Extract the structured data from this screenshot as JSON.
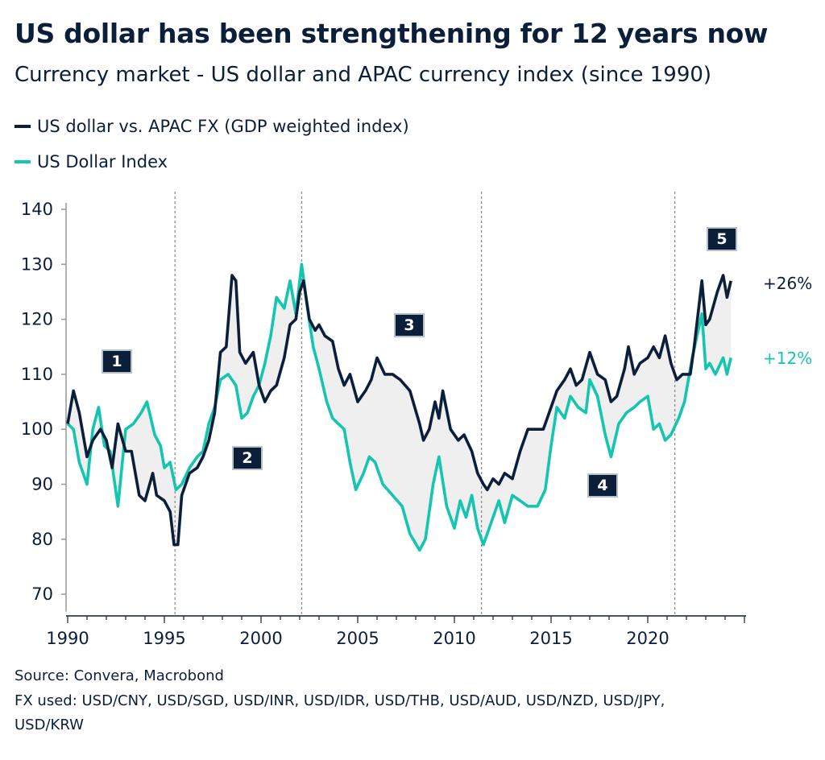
{
  "title": "US dollar has been strengthening for 12 years now",
  "subtitle": "Currency market - US dollar and APAC currency index (since 1990)",
  "colors": {
    "usd_apac": "#0b1f3a",
    "dxy": "#14c5b0",
    "fill": "#efefef"
  },
  "source": "Source: Convera, Macrobond",
  "fx_used": "FX used: USD/CNY, USD/SGD, USD/INR, USD/IDR, USD/THB, USD/AUD, USD/NZD, USD/JPY,",
  "fx_used_2": "USD/KRW",
  "chart_data": {
    "type": "line",
    "title": "US dollar has been strengthening for 12 years now",
    "xlim": [
      1990,
      2025
    ],
    "ylim": [
      68,
      143
    ],
    "x_ticks": [
      1990,
      1995,
      2000,
      2005,
      2010,
      2015,
      2020
    ],
    "y_ticks": [
      70,
      80,
      90,
      100,
      110,
      120,
      130,
      140
    ],
    "grid": false,
    "legend_position": "top-left",
    "shaded_between_series": true,
    "regime_dividers": [
      1995.55,
      2002.1,
      2011.4,
      2021.4
    ],
    "annotations": [
      "1",
      "2",
      "3",
      "4",
      "5"
    ],
    "end_labels": {
      "usd_apac": "+26%",
      "dxy": "+12%"
    },
    "series": [
      {
        "name": "US dollar vs. APAC FX (GDP weighted index)",
        "color": "#0b1f3a",
        "x": [
          1990.0,
          1990.3,
          1990.6,
          1991.0,
          1991.3,
          1991.7,
          1992.0,
          1992.3,
          1992.6,
          1993.0,
          1993.3,
          1993.7,
          1994.0,
          1994.4,
          1994.6,
          1995.0,
          1995.3,
          1995.5,
          1995.7,
          1995.9,
          1996.3,
          1996.7,
          1997.0,
          1997.3,
          1997.6,
          1997.9,
          1998.2,
          1998.5,
          1998.7,
          1998.9,
          1999.2,
          1999.6,
          1999.9,
          2000.2,
          2000.5,
          2000.8,
          2001.2,
          2001.5,
          2001.8,
          2002.0,
          2002.2,
          2002.5,
          2002.8,
          2003.0,
          2003.3,
          2003.7,
          2004.0,
          2004.3,
          2004.6,
          2005.0,
          2005.4,
          2005.7,
          2006.0,
          2006.4,
          2006.8,
          2007.2,
          2007.7,
          2008.2,
          2008.4,
          2008.7,
          2009.0,
          2009.2,
          2009.4,
          2009.8,
          2010.2,
          2010.5,
          2010.9,
          2011.2,
          2011.5,
          2011.7,
          2012.0,
          2012.3,
          2012.6,
          2013.0,
          2013.4,
          2013.8,
          2014.2,
          2014.6,
          2014.9,
          2015.3,
          2015.7,
          2016.0,
          2016.3,
          2016.6,
          2017.0,
          2017.4,
          2017.8,
          2018.1,
          2018.4,
          2018.8,
          2019.0,
          2019.3,
          2019.6,
          2020.0,
          2020.3,
          2020.6,
          2020.9,
          2021.2,
          2021.5,
          2021.8,
          2022.2,
          2022.4,
          2022.8,
          2023.0,
          2023.2,
          2023.6,
          2023.9,
          2024.1,
          2024.3
        ],
        "values": [
          101,
          107,
          103,
          95,
          98,
          100,
          98,
          93,
          101,
          96,
          96,
          88,
          87,
          92,
          88,
          87,
          85,
          79,
          79,
          88,
          92,
          93,
          95,
          98,
          103,
          114,
          115,
          128,
          127,
          114,
          112,
          114,
          108,
          105,
          107,
          108,
          113,
          119,
          120,
          125,
          127,
          120,
          118,
          119,
          117,
          116,
          111,
          108,
          110,
          105,
          107,
          109,
          113,
          110,
          110,
          109,
          107,
          101,
          98,
          100,
          105,
          102,
          107,
          100,
          98,
          99,
          96,
          92,
          90,
          89,
          91,
          90,
          92,
          91,
          96,
          100,
          100,
          100,
          103,
          107,
          109,
          111,
          108,
          109,
          114,
          110,
          109,
          105,
          106,
          111,
          115,
          110,
          112,
          113,
          115,
          113,
          117,
          112,
          109,
          110,
          110,
          115,
          127,
          119,
          120,
          125,
          128,
          124,
          127
        ]
      },
      {
        "name": "US Dollar Index",
        "color": "#14c5b0",
        "x": [
          1990.0,
          1990.3,
          1990.6,
          1991.0,
          1991.3,
          1991.6,
          1991.9,
          1992.2,
          1992.6,
          1993.0,
          1993.4,
          1993.8,
          1994.1,
          1994.5,
          1994.8,
          1995.0,
          1995.3,
          1995.6,
          1995.9,
          1996.3,
          1996.7,
          1997.0,
          1997.3,
          1997.6,
          1997.9,
          1998.3,
          1998.7,
          1999.0,
          1999.3,
          1999.6,
          1999.9,
          2000.2,
          2000.5,
          2000.8,
          2001.2,
          2001.5,
          2001.8,
          2002.1,
          2002.4,
          2002.7,
          2003.0,
          2003.4,
          2003.7,
          2004.0,
          2004.3,
          2004.6,
          2004.9,
          2005.3,
          2005.6,
          2005.9,
          2006.3,
          2006.8,
          2007.3,
          2007.7,
          2008.2,
          2008.5,
          2008.9,
          2009.2,
          2009.6,
          2010.0,
          2010.3,
          2010.6,
          2010.9,
          2011.2,
          2011.5,
          2011.9,
          2012.3,
          2012.6,
          2013.0,
          2013.4,
          2013.8,
          2014.3,
          2014.7,
          2015.0,
          2015.3,
          2015.7,
          2016.0,
          2016.4,
          2016.8,
          2017.0,
          2017.4,
          2017.8,
          2018.1,
          2018.5,
          2018.9,
          2019.3,
          2019.6,
          2020.0,
          2020.3,
          2020.6,
          2020.9,
          2021.2,
          2021.6,
          2021.9,
          2022.3,
          2022.8,
          2023.0,
          2023.2,
          2023.5,
          2023.9,
          2024.1,
          2024.3
        ],
        "values": [
          101,
          100,
          94,
          90,
          100,
          104,
          97,
          96,
          86,
          100,
          101,
          103,
          105,
          99,
          97,
          93,
          94,
          89,
          90,
          93,
          95,
          96,
          101,
          104,
          109,
          110,
          108,
          102,
          103,
          106,
          108,
          112,
          117,
          124,
          122,
          127,
          121,
          130,
          122,
          115,
          111,
          105,
          102,
          101,
          100,
          94,
          89,
          92,
          95,
          94,
          90,
          88,
          86,
          81,
          78,
          80,
          90,
          95,
          86,
          82,
          87,
          84,
          88,
          82,
          79,
          83,
          87,
          83,
          88,
          87,
          86,
          86,
          89,
          97,
          104,
          102,
          106,
          104,
          103,
          109,
          106,
          99,
          95,
          101,
          103,
          104,
          105,
          106,
          100,
          101,
          98,
          99,
          102,
          105,
          113,
          121,
          111,
          112,
          110,
          113,
          110,
          113
        ]
      }
    ]
  }
}
